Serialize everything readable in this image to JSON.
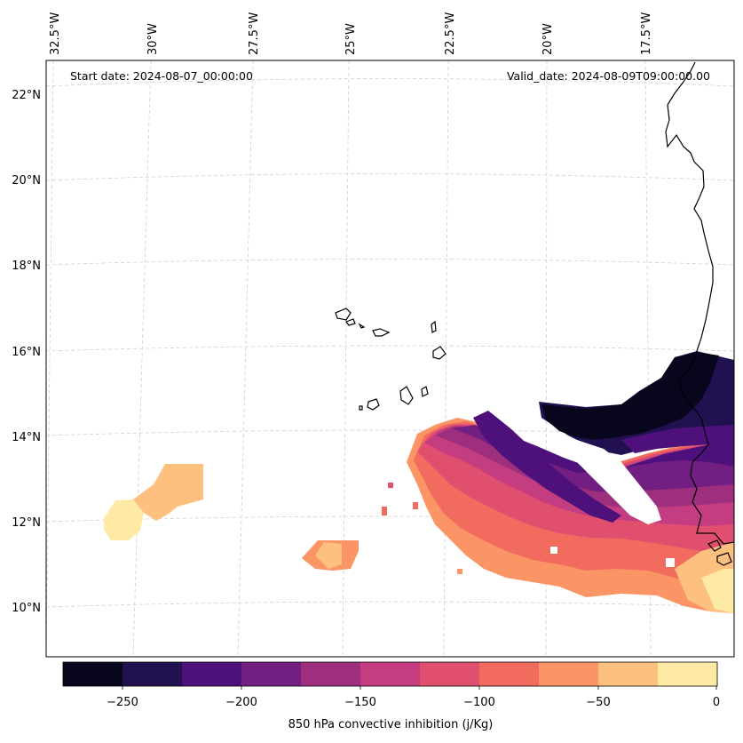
{
  "header": {
    "start_date": "Start date: 2024-08-07_00:00:00",
    "valid_date": "Valid_date: 2024-08-09T09:00:00.00"
  },
  "lon_labels": [
    "32.5°W",
    "30°W",
    "27.5°W",
    "25°W",
    "22.5°W",
    "20°W",
    "17.5°W"
  ],
  "lat_labels": [
    "22°N",
    "20°N",
    "18°N",
    "16°N",
    "14°N",
    "12°N",
    "10°N"
  ],
  "colorbar": {
    "label": "850 hPa convective inhibition (j/Kg)",
    "ticks": [
      "−250",
      "−200",
      "−150",
      "−100",
      "−50",
      "0"
    ],
    "colors": [
      "#07061c",
      "#221150",
      "#4e117b",
      "#721f81",
      "#9e2f7f",
      "#c33d80",
      "#e14f6f",
      "#f26b5f",
      "#fb9565",
      "#fdc07e",
      "#fee9a5"
    ]
  }
}
